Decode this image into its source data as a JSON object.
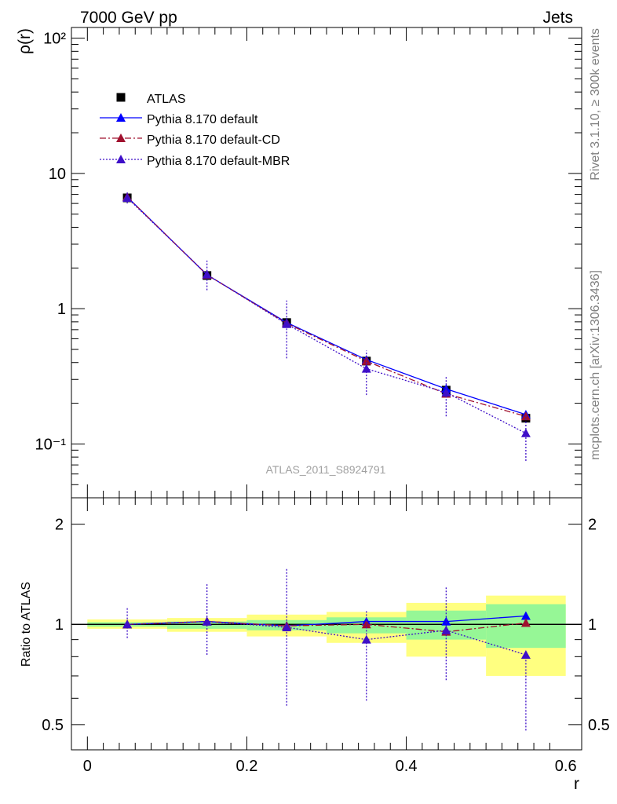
{
  "header": {
    "left": "7000 GeV pp",
    "right": "Jets"
  },
  "side_labels": {
    "upper": "Rivet 3.1.10, ≥ 300k events",
    "lower": "mcplots.cern.ch [arXiv:1306.3436]"
  },
  "watermark": "ATLAS_2011_S8924791",
  "colors": {
    "atlas": "#000000",
    "default": "#0000ff",
    "cd": "#a0102e",
    "mbr": "#3e0fc8",
    "band_yellow": "#ffff80",
    "band_green": "#96f796"
  },
  "chart_data": [
    {
      "type": "line",
      "log_y": true,
      "ylabel": "ρ(r)",
      "xlim": [
        -0.02,
        0.62
      ],
      "ylim": [
        0.04,
        120
      ],
      "y_tick_labels": [
        "10⁻¹",
        "1",
        "10",
        "10²"
      ],
      "x": [
        0.05,
        0.15,
        0.25,
        0.35,
        0.45,
        0.55
      ],
      "legend_position": "top-left",
      "data_points": {
        "name": "ATLAS",
        "values": [
          6.6,
          1.76,
          0.79,
          0.41,
          0.25,
          0.155
        ]
      },
      "series": [
        {
          "name": "Pythia 8.170 default",
          "values": [
            6.7,
            1.78,
            0.79,
            0.42,
            0.255,
            0.165
          ],
          "err": [
            0.05,
            0.03,
            0.01,
            0.01,
            0.006,
            0.005
          ]
        },
        {
          "name": "Pythia 8.170 default-CD",
          "values": [
            6.7,
            1.78,
            0.78,
            0.41,
            0.235,
            0.16
          ],
          "err": [
            0.05,
            0.03,
            0.01,
            0.01,
            0.005,
            0.004
          ]
        },
        {
          "name": "Pythia 8.170 default-MBR",
          "values": [
            6.6,
            1.79,
            0.77,
            0.36,
            0.24,
            0.12
          ],
          "err_lo": [
            0.6,
            0.42,
            0.34,
            0.13,
            0.08,
            0.045
          ],
          "err_hi": [
            0.8,
            0.48,
            0.38,
            0.13,
            0.08,
            0.045
          ]
        }
      ]
    },
    {
      "type": "line",
      "log_y": true,
      "xlabel": "r",
      "ylabel": "Ratio to ATLAS",
      "xlim": [
        -0.02,
        0.62
      ],
      "ylim": [
        0.42,
        2.4
      ],
      "x_tick_labels": [
        "0",
        "0.2",
        "0.4",
        "0.6"
      ],
      "y_tick_labels": [
        "0.5",
        "1",
        "2"
      ],
      "bins": [
        [
          0.0,
          0.1
        ],
        [
          0.1,
          0.2
        ],
        [
          0.2,
          0.3
        ],
        [
          0.3,
          0.4
        ],
        [
          0.4,
          0.5
        ],
        [
          0.5,
          0.6
        ]
      ],
      "band_green": [
        [
          0.985,
          1.015
        ],
        [
          0.97,
          1.02
        ],
        [
          0.96,
          1.03
        ],
        [
          0.94,
          1.05
        ],
        [
          0.9,
          1.1
        ],
        [
          0.85,
          1.15
        ]
      ],
      "band_yellow": [
        [
          0.97,
          1.035
        ],
        [
          0.95,
          1.045
        ],
        [
          0.92,
          1.07
        ],
        [
          0.88,
          1.09
        ],
        [
          0.8,
          1.16
        ],
        [
          0.7,
          1.22
        ]
      ],
      "x": [
        0.05,
        0.15,
        0.25,
        0.35,
        0.45,
        0.55
      ],
      "series": [
        {
          "name": "Pythia 8.170 default",
          "values": [
            1.0,
            1.02,
            0.99,
            1.02,
            1.02,
            1.06
          ],
          "err": [
            0.006,
            0.008,
            0.01,
            0.012,
            0.014,
            0.02
          ]
        },
        {
          "name": "Pythia 8.170 default-CD",
          "values": [
            1.0,
            1.02,
            0.99,
            1.0,
            0.95,
            1.01
          ],
          "err": [
            0.006,
            0.008,
            0.01,
            0.012,
            0.014,
            0.018
          ]
        },
        {
          "name": "Pythia 8.170 default-MBR",
          "values": [
            1.0,
            1.02,
            0.98,
            0.9,
            0.96,
            0.81
          ],
          "err_lo": [
            0.09,
            0.21,
            0.41,
            0.31,
            0.28,
            0.33
          ],
          "err_hi": [
            0.12,
            0.3,
            0.49,
            0.2,
            0.34,
            0.01
          ]
        }
      ]
    }
  ]
}
